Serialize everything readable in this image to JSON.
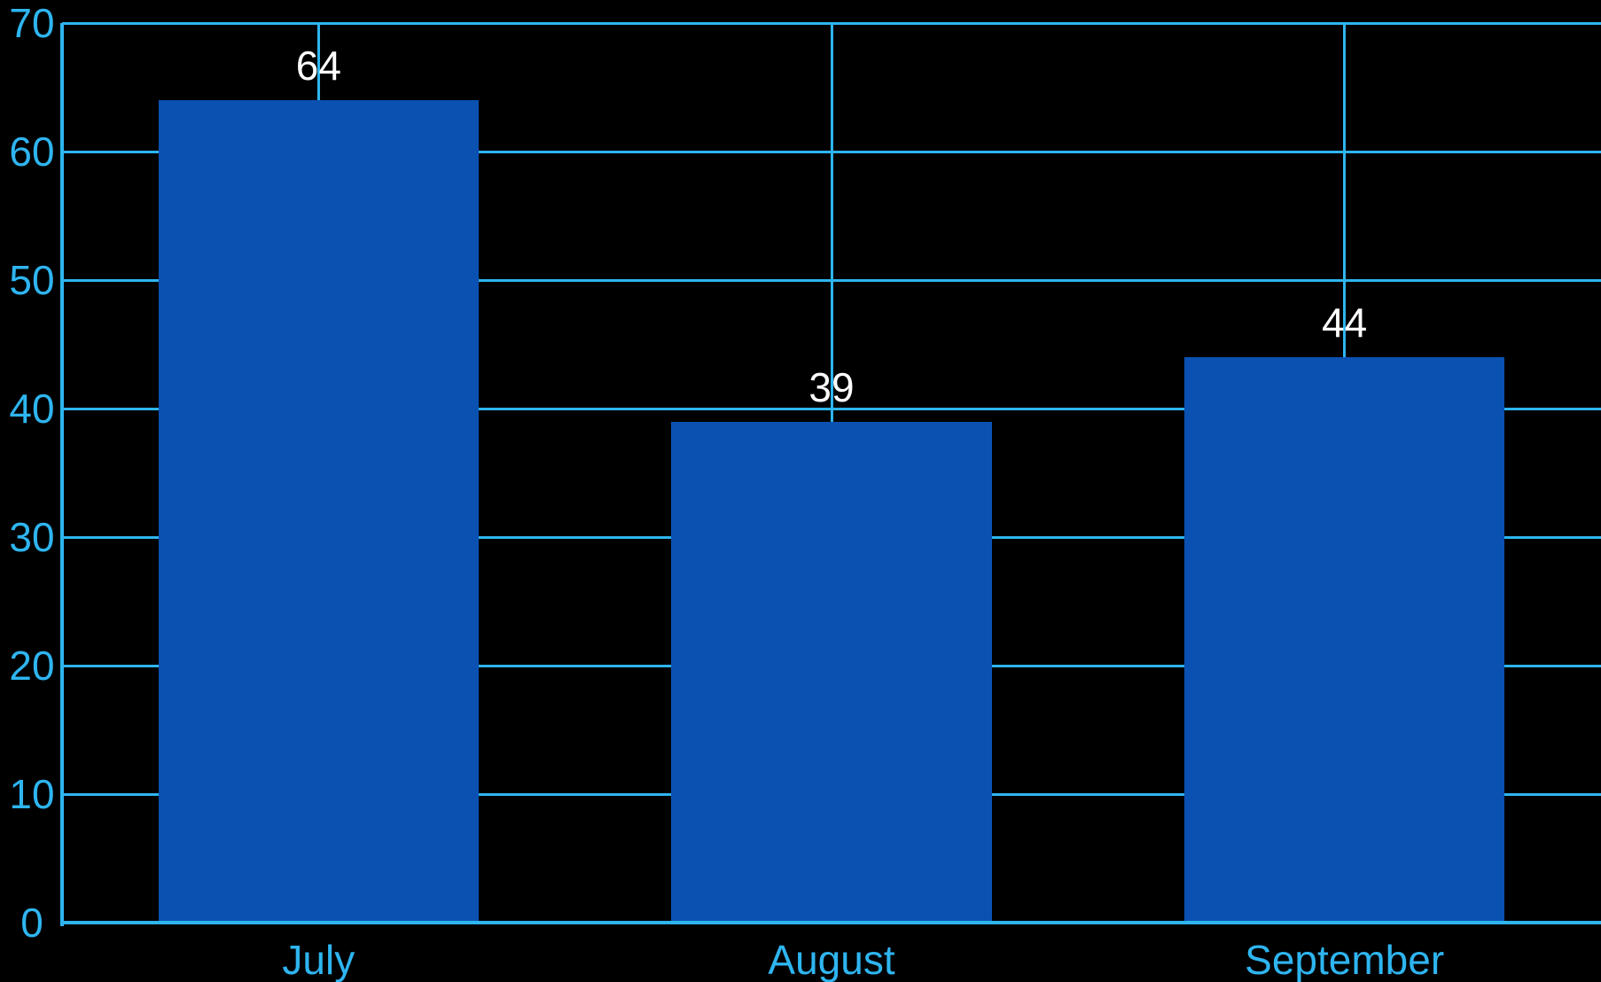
{
  "chart_data": {
    "type": "bar",
    "categories": [
      "July",
      "August",
      "September"
    ],
    "values": [
      64,
      39,
      44
    ],
    "title": "",
    "xlabel": "",
    "ylabel": "",
    "ylim": [
      0,
      70
    ],
    "ytick_step": 10,
    "yticks": [
      0,
      10,
      20,
      30,
      40,
      50,
      60,
      70
    ],
    "grid": true,
    "vertical_gridlines_at_bar_centers": true,
    "legend": false,
    "data_labels": true,
    "colors": {
      "background": "#000000",
      "bar": "#0a51b2",
      "axis_and_grid": "#2eb5f0",
      "value_label": "#ffffff"
    }
  }
}
